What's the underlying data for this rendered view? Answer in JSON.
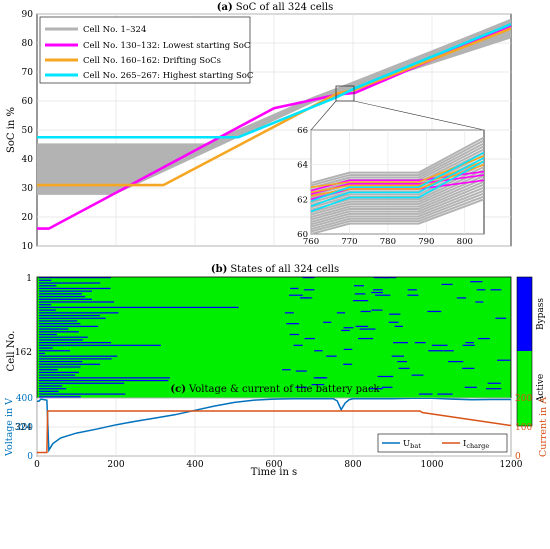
{
  "chart_data": [
    {
      "panel": "a",
      "type": "line",
      "title_label": "(a)",
      "title": "SoC of all 324 cells",
      "xlim": [
        0,
        1200
      ],
      "ylim": [
        10,
        90
      ],
      "yticks": [
        10,
        20,
        30,
        40,
        50,
        60,
        70,
        80,
        90
      ],
      "ylabel": "SoC in %",
      "xlabel": "",
      "grid": true,
      "legend_position": "top-left",
      "series": [
        {
          "name": "Cell No. 1–324",
          "color": "#b3b3b3",
          "start_soc_range": [
            28,
            45
          ],
          "end_soc_range": [
            82,
            88
          ]
        },
        {
          "name": "Cell No. 130–132: Lowest starting SoC",
          "color": "#ff00ff",
          "x": [
            0,
            30,
            600,
            760,
            805,
            1200
          ],
          "y": [
            16,
            16,
            57.5,
            62.2,
            62.8,
            86
          ]
        },
        {
          "name": "Cell No. 160–162: Drifting SoCs",
          "color": "#f5a623",
          "x": [
            0,
            320,
            760,
            805,
            1200
          ],
          "y": [
            31,
            31,
            62.6,
            63.9,
            85
          ]
        },
        {
          "name": "Cell No. 265–267: Highest starting SoC",
          "color": "#00e5ff",
          "x": [
            0,
            510,
            760,
            805,
            1200
          ],
          "y": [
            47.5,
            47.5,
            61.4,
            64.4,
            86.5
          ]
        }
      ],
      "inset": {
        "xlim": [
          760,
          805
        ],
        "ylim": [
          60,
          66
        ],
        "xticks": [
          760,
          770,
          780,
          790,
          800
        ],
        "yticks": [
          60,
          62,
          64,
          66
        ]
      }
    },
    {
      "panel": "b",
      "type": "heatmap",
      "title_label": "(b)",
      "title": "States of all 324 cells",
      "ylabel": "Cell No.",
      "yticks": [
        "1",
        "162",
        "324"
      ],
      "xlim": [
        0,
        1200
      ],
      "colorbar": [
        {
          "label": "Bypass",
          "color": "#0000ff"
        },
        {
          "label": "Active",
          "color": "#00ee00"
        }
      ]
    },
    {
      "panel": "c",
      "type": "line",
      "title_label": "(c)",
      "title": "Voltage & current of the battery pack",
      "xlabel": "Time in s",
      "xlim": [
        0,
        1200
      ],
      "xticks": [
        0,
        200,
        400,
        600,
        800,
        1000,
        1200
      ],
      "ylim_left": [
        0,
        400
      ],
      "yticks_left": [
        0,
        200,
        400
      ],
      "ylabel_left": "Voltage in V",
      "ylim_right": [
        0,
        200
      ],
      "yticks_right": [
        0,
        100,
        200
      ],
      "ylabel_right": "Current in A",
      "legend_position": "bottom-right",
      "series": [
        {
          "name_main": "U",
          "name_sub": "bat",
          "axis": "left",
          "color": "#0072bd",
          "x": [
            0,
            5,
            10,
            25,
            30,
            40,
            60,
            100,
            150,
            200,
            250,
            300,
            350,
            400,
            450,
            500,
            550,
            600,
            650,
            700,
            750,
            760,
            770,
            780,
            790,
            800,
            850,
            900,
            950,
            1000,
            1050,
            1100,
            1150,
            1200
          ],
          "y": [
            378,
            378,
            392,
            385,
            40,
            85,
            125,
            158,
            185,
            215,
            240,
            262,
            285,
            315,
            345,
            370,
            385,
            392,
            395,
            395,
            395,
            380,
            320,
            365,
            388,
            395,
            395,
            395,
            398,
            398,
            392,
            388,
            390,
            390
          ]
        },
        {
          "name_main": "I",
          "name_sub": "charge",
          "axis": "right",
          "color": "#d95319",
          "x": [
            0,
            25,
            27,
            30,
            970,
            975,
            1100,
            1200
          ],
          "y": [
            12,
            12,
            155,
            155,
            155,
            150,
            125,
            105
          ]
        }
      ]
    }
  ]
}
